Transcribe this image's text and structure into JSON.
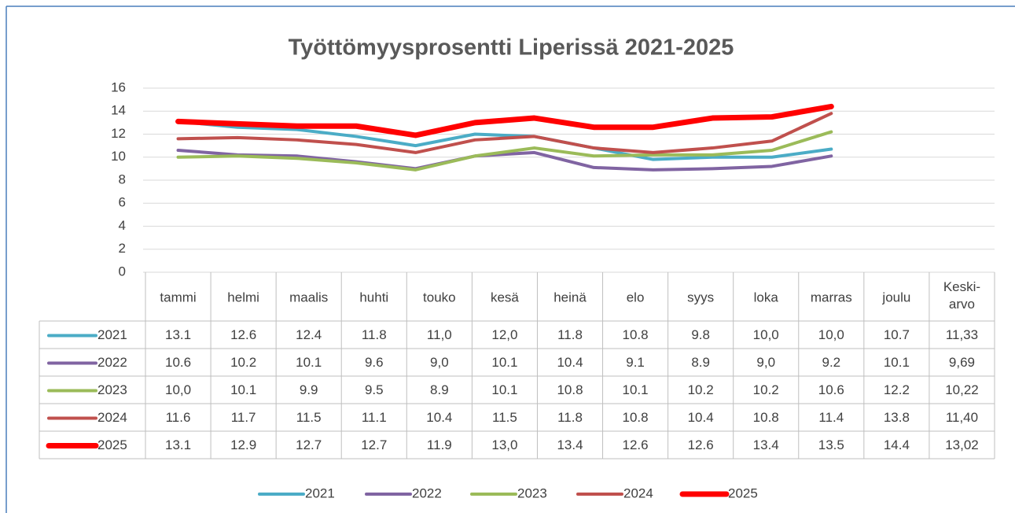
{
  "chart_data": {
    "type": "line",
    "title": "Työttömyysprosentti Liperissä 2021-2025",
    "categories": [
      "tammi",
      "helmi",
      "maalis",
      "huhti",
      "touko",
      "kesä",
      "heinä",
      "elo",
      "syys",
      "loka",
      "marras",
      "joulu"
    ],
    "average_header": "Keski-arvo",
    "ylim": [
      0,
      16
    ],
    "yticks": [
      0,
      2,
      4,
      6,
      8,
      10,
      12,
      14,
      16
    ],
    "grid": true,
    "legend": "bottom",
    "series": [
      {
        "name": "2021",
        "color": "#4bacc6",
        "values": [
          13.1,
          12.6,
          12.4,
          11.8,
          11.0,
          12.0,
          11.8,
          10.8,
          9.8,
          10.0,
          10.0,
          10.7
        ],
        "value_labels": [
          "13.1",
          "12.6",
          "12.4",
          "11.8",
          "11,0",
          "12,0",
          "11.8",
          "10.8",
          "9.8",
          "10,0",
          "10,0",
          "10.7"
        ],
        "average": 11.33,
        "average_label": "11,33"
      },
      {
        "name": "2022",
        "color": "#8064a2",
        "values": [
          10.6,
          10.2,
          10.1,
          9.6,
          9.0,
          10.1,
          10.4,
          9.1,
          8.9,
          9.0,
          9.2,
          10.1
        ],
        "value_labels": [
          "10.6",
          "10.2",
          "10.1",
          "9.6",
          "9,0",
          "10.1",
          "10.4",
          "9.1",
          "8.9",
          "9,0",
          "9.2",
          "10.1"
        ],
        "average": 9.69,
        "average_label": "9,69"
      },
      {
        "name": "2023",
        "color": "#9bbb59",
        "values": [
          10.0,
          10.1,
          9.9,
          9.5,
          8.9,
          10.1,
          10.8,
          10.1,
          10.2,
          10.2,
          10.6,
          12.2
        ],
        "value_labels": [
          "10,0",
          "10.1",
          "9.9",
          "9.5",
          "8.9",
          "10.1",
          "10.8",
          "10.1",
          "10.2",
          "10.2",
          "10.6",
          "12.2"
        ],
        "average": 10.22,
        "average_label": "10,22"
      },
      {
        "name": "2024",
        "color": "#c0504d",
        "values": [
          11.6,
          11.7,
          11.5,
          11.1,
          10.4,
          11.5,
          11.8,
          10.8,
          10.4,
          10.8,
          11.4,
          13.8
        ],
        "value_labels": [
          "11.6",
          "11.7",
          "11.5",
          "11.1",
          "10.4",
          "11.5",
          "11.8",
          "10.8",
          "10.4",
          "10.8",
          "11.4",
          "13.8"
        ],
        "average": 11.4,
        "average_label": "11,40"
      },
      {
        "name": "2025",
        "color": "#ff0000",
        "values": [
          13.1,
          12.9,
          12.7,
          12.7,
          11.9,
          13.0,
          13.4,
          12.6,
          12.6,
          13.4,
          13.5,
          14.4
        ],
        "value_labels": [
          "13.1",
          "12.9",
          "12.7",
          "12.7",
          "11.9",
          "13,0",
          "13.4",
          "12.6",
          "12.6",
          "13.4",
          "13.5",
          "14.4"
        ],
        "average": 13.02,
        "average_label": "13,02"
      }
    ]
  }
}
